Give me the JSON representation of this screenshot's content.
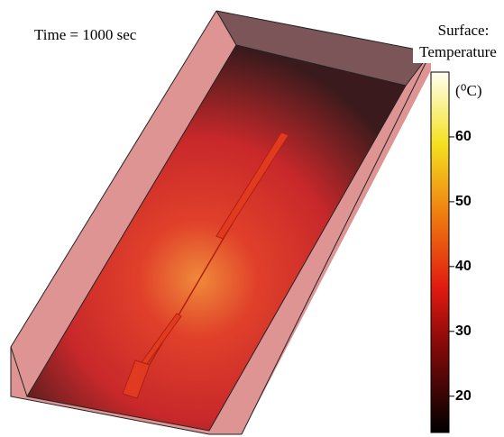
{
  "time_label": "Time =  1000 sec",
  "colorbar": {
    "title": [
      "Surface:",
      "Temperature"
    ],
    "unit": "(⁰C)",
    "range": [
      14.4,
      70
    ],
    "ticks": [
      20,
      30,
      40,
      50,
      60
    ]
  }
}
